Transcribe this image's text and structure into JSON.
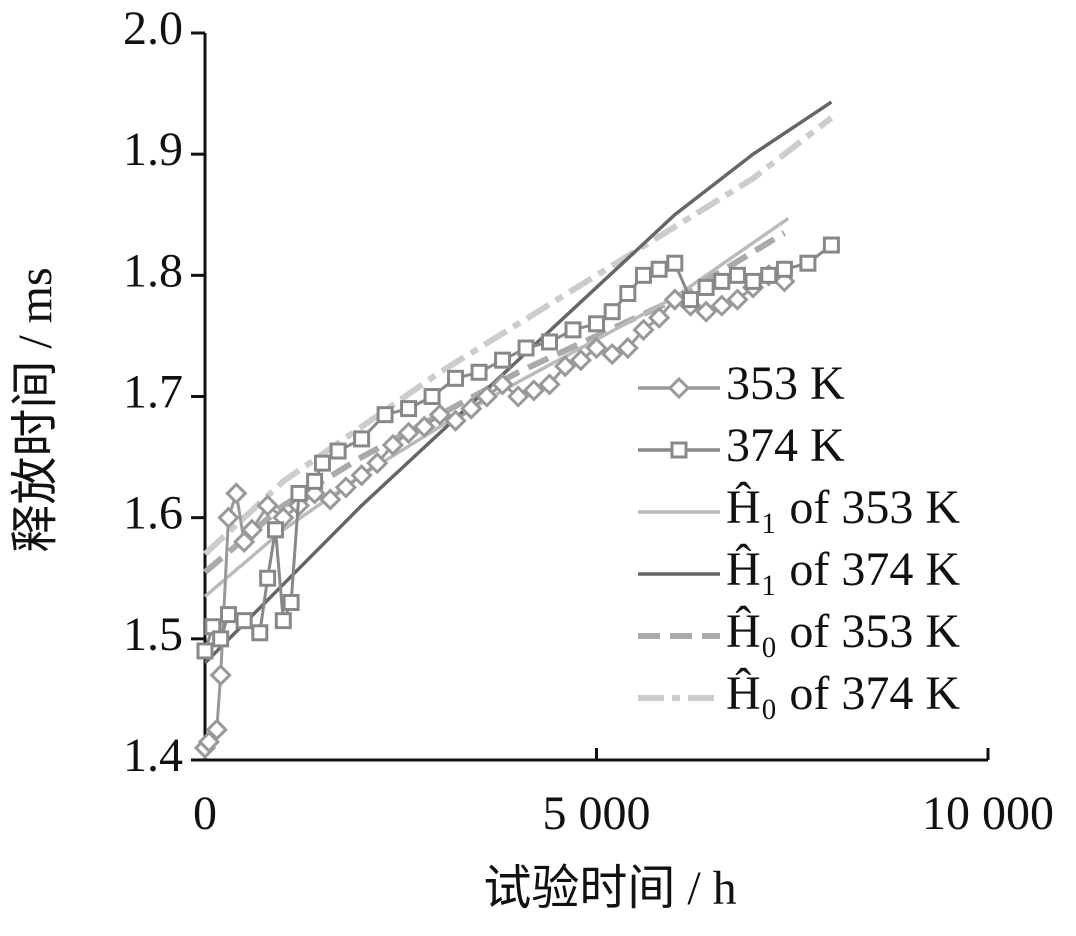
{
  "chart_data": {
    "type": "line",
    "xlabel": "试验时间 / h",
    "ylabel": "释放时间 / ms",
    "xlim": [
      0,
      10000
    ],
    "ylim": [
      1.4,
      2.0
    ],
    "xticks": [
      0,
      {
        "value": 5000,
        "label": "5 000"
      },
      {
        "value": 10000,
        "label": "10 000"
      }
    ],
    "yticks": [
      1.4,
      1.5,
      1.6,
      1.7,
      1.8,
      1.9,
      {
        "value": 2,
        "label": "2.0"
      }
    ],
    "series": [
      {
        "name": "353 K",
        "color": "#999999",
        "marker": "diamond",
        "dash": "solid",
        "x": [
          0,
          50,
          150,
          200,
          300,
          400,
          500,
          600,
          800,
          1000,
          1200,
          1400,
          1600,
          1800,
          2000,
          2200,
          2400,
          2600,
          2800,
          3000,
          3200,
          3400,
          3600,
          3800,
          4000,
          4200,
          4400,
          4600,
          4800,
          5000,
          5200,
          5400,
          5600,
          5800,
          6000,
          6200,
          6400,
          6600,
          6800,
          7000,
          7200,
          7400
        ],
        "values": [
          1.41,
          1.415,
          1.425,
          1.47,
          1.6,
          1.62,
          1.58,
          1.59,
          1.61,
          1.6,
          1.61,
          1.62,
          1.615,
          1.625,
          1.635,
          1.645,
          1.66,
          1.67,
          1.675,
          1.685,
          1.68,
          1.69,
          1.7,
          1.71,
          1.7,
          1.705,
          1.71,
          1.725,
          1.73,
          1.74,
          1.735,
          1.74,
          1.755,
          1.765,
          1.78,
          1.775,
          1.77,
          1.775,
          1.78,
          1.79,
          1.8,
          1.795
        ]
      },
      {
        "name": "374 K",
        "color": "#888888",
        "marker": "square",
        "dash": "solid",
        "x": [
          0,
          100,
          200,
          300,
          500,
          700,
          800,
          900,
          1000,
          1100,
          1200,
          1400,
          1500,
          1700,
          2000,
          2300,
          2600,
          2900,
          3200,
          3500,
          3800,
          4100,
          4400,
          4700,
          5000,
          5200,
          5400,
          5600,
          5800,
          6000,
          6200,
          6400,
          6600,
          6800,
          7000,
          7200,
          7400,
          7700,
          8000
        ],
        "values": [
          1.49,
          1.51,
          1.5,
          1.52,
          1.515,
          1.505,
          1.55,
          1.59,
          1.515,
          1.53,
          1.62,
          1.63,
          1.645,
          1.655,
          1.665,
          1.685,
          1.69,
          1.7,
          1.715,
          1.72,
          1.73,
          1.74,
          1.745,
          1.755,
          1.76,
          1.77,
          1.785,
          1.8,
          1.805,
          1.81,
          1.78,
          1.79,
          1.795,
          1.8,
          1.795,
          1.8,
          1.805,
          1.81,
          1.825
        ]
      },
      {
        "name": "Ĥ₁ of 353 K",
        "color": "#bbbbbb",
        "marker": "none",
        "dash": "solid",
        "x": [
          0,
          1000,
          2000,
          3000,
          4000,
          5000,
          6000,
          7450
        ],
        "values": [
          1.535,
          1.59,
          1.635,
          1.675,
          1.712,
          1.747,
          1.782,
          1.847
        ]
      },
      {
        "name": "Ĥ₁ of 374 K",
        "color": "#666666",
        "marker": "none",
        "dash": "solid",
        "x": [
          0,
          1000,
          2000,
          3000,
          4000,
          5000,
          6000,
          7000,
          8000
        ],
        "values": [
          1.48,
          1.545,
          1.61,
          1.67,
          1.73,
          1.79,
          1.85,
          1.9,
          1.943
        ]
      },
      {
        "name": "Ĥ₀ of 353 K",
        "color": "#aaaaaa",
        "marker": "none",
        "dash": "dash",
        "x": [
          0,
          1000,
          2000,
          3000,
          4000,
          5000,
          6000,
          7400
        ],
        "values": [
          1.555,
          1.61,
          1.65,
          1.685,
          1.72,
          1.75,
          1.78,
          1.835
        ]
      },
      {
        "name": "Ĥ₀ of 374 K",
        "color": "#cccccc",
        "marker": "none",
        "dash": "dashdot",
        "x": [
          0,
          1000,
          2000,
          3000,
          4000,
          5000,
          6000,
          7000,
          8000
        ],
        "values": [
          1.57,
          1.63,
          1.675,
          1.72,
          1.76,
          1.8,
          1.84,
          1.88,
          1.93
        ]
      }
    ]
  }
}
